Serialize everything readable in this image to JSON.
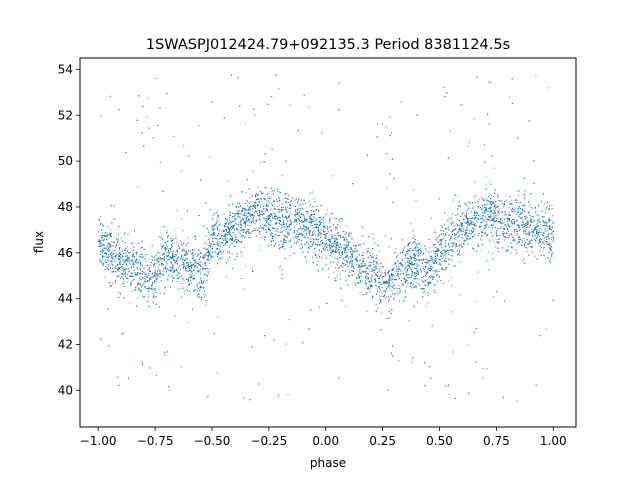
{
  "chart_data": {
    "type": "scatter",
    "title": "1SWASPJ012424.79+092135.3 Period 8381124.5s",
    "xlabel": "phase",
    "ylabel": "flux",
    "xlim": [
      -1.08,
      1.1
    ],
    "ylim": [
      38.4,
      54.5
    ],
    "x_ticks": [
      -1.0,
      -0.75,
      -0.5,
      -0.25,
      0.0,
      0.25,
      0.5,
      0.75,
      1.0
    ],
    "x_tick_labels": [
      "−1.00",
      "−0.75",
      "−0.50",
      "−0.25",
      "0.00",
      "0.25",
      "0.50",
      "0.75",
      "1.00"
    ],
    "y_ticks": [
      40,
      42,
      44,
      46,
      48,
      50,
      52,
      54
    ],
    "y_tick_labels": [
      "40",
      "42",
      "44",
      "46",
      "48",
      "50",
      "52",
      "54"
    ],
    "grid": false,
    "legend": "none",
    "marker_color": "#1f77b4",
    "series": [
      {
        "phase_range": [
          -1.0,
          1.0
        ],
        "trend_phase": [
          -1.0,
          -0.9,
          -0.8,
          -0.75,
          -0.7,
          -0.62,
          -0.55,
          -0.5,
          -0.4,
          -0.3,
          -0.25,
          -0.15,
          -0.05,
          0.0,
          0.1,
          0.2,
          0.25,
          0.3,
          0.38,
          0.45,
          0.5,
          0.6,
          0.7,
          0.75,
          0.85,
          0.95,
          1.0
        ],
        "trend_flux": [
          46.5,
          45.5,
          45.0,
          44.9,
          46.0,
          45.5,
          45.0,
          46.5,
          47.0,
          47.8,
          47.5,
          47.3,
          47.0,
          46.7,
          45.8,
          45.0,
          44.7,
          45.0,
          45.6,
          45.0,
          46.0,
          47.0,
          47.7,
          47.5,
          47.2,
          47.0,
          46.6
        ],
        "scatter_spread": 0.6,
        "points_count": 9000
      }
    ]
  }
}
